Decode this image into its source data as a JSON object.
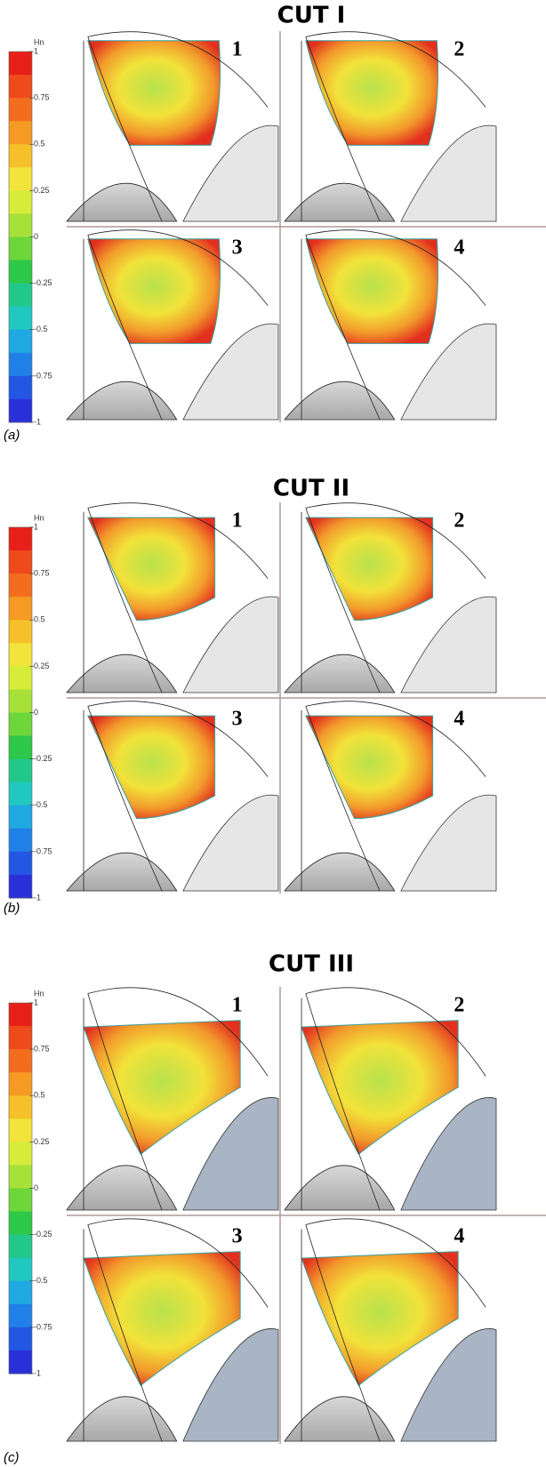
{
  "panels": [
    {
      "title": "CUT I",
      "label": "(a)",
      "colorbar": {
        "label": "Hn",
        "ticks": [
          "1",
          "0.75",
          "0.5",
          "0.25",
          "0",
          "-0.25",
          "-0.5",
          "-0.75",
          "-1"
        ]
      },
      "subplots": [
        "1",
        "2",
        "3",
        "4"
      ]
    },
    {
      "title": "CUT II",
      "label": "(b)",
      "colorbar": {
        "label": "Hn",
        "ticks": [
          "1",
          "0.75",
          "0.5",
          "0.25",
          "0",
          "-0.25",
          "-0.5",
          "-0.75",
          "-1"
        ]
      },
      "subplots": [
        "1",
        "2",
        "3",
        "4"
      ]
    },
    {
      "title": "CUT III",
      "label": "(c)",
      "colorbar": {
        "label": "Hn",
        "ticks": [
          "1",
          "0.75",
          "0.5",
          "0.25",
          "0",
          "-0.25",
          "-0.5",
          "-0.75",
          "-1"
        ]
      },
      "subplots": [
        "1",
        "2",
        "3",
        "4"
      ]
    }
  ]
}
